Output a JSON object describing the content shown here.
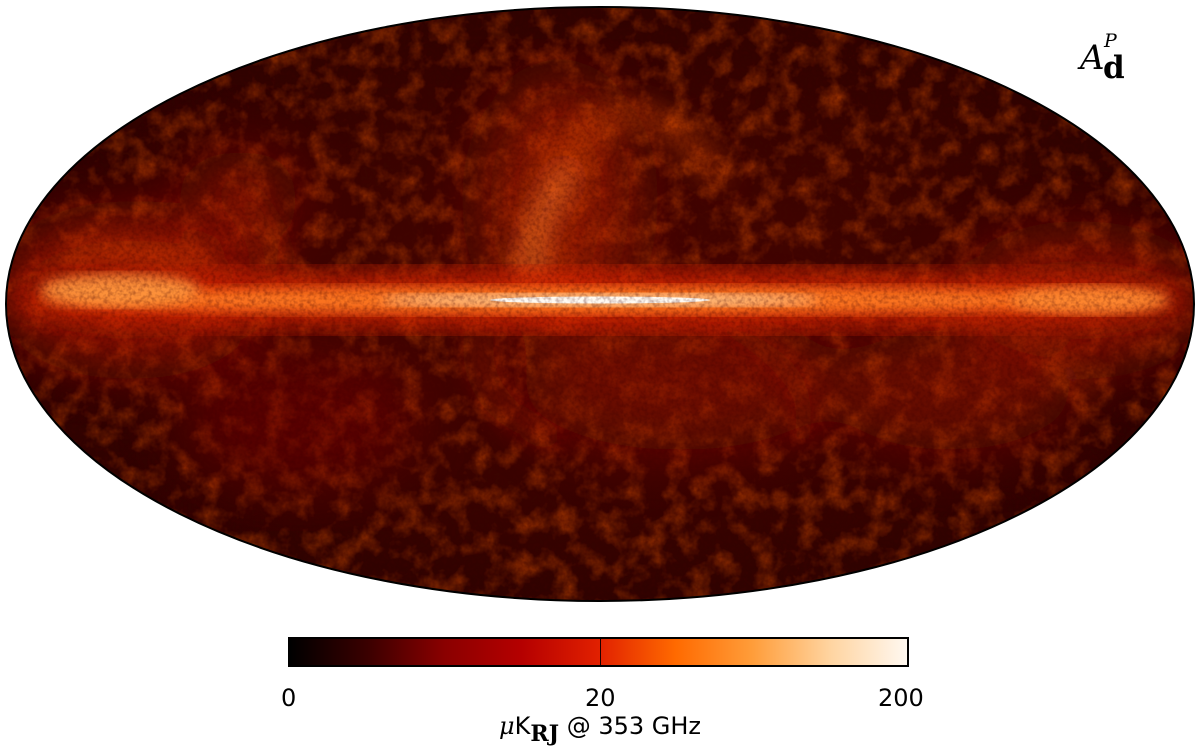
{
  "map": {
    "projection": "mollweide",
    "title": {
      "symbol": "A",
      "superscript": "P",
      "subscript": "d"
    }
  },
  "colorbar": {
    "colormap": [
      "#000000",
      "#3a0000",
      "#8a0000",
      "#b50000",
      "#e12000",
      "#ff6a00",
      "#ff9d3a",
      "#ffd4a0",
      "#fff8f0"
    ],
    "scale": "nonlinear",
    "ticks": [
      {
        "value": "0",
        "position": 0.0
      },
      {
        "value": "20",
        "position": 0.5
      },
      {
        "value": "200",
        "position": 1.0
      }
    ],
    "unit_prefix": "μ",
    "unit_main": "K",
    "unit_subscript": "RJ",
    "unit_suffix": " @ 353 GHz"
  }
}
